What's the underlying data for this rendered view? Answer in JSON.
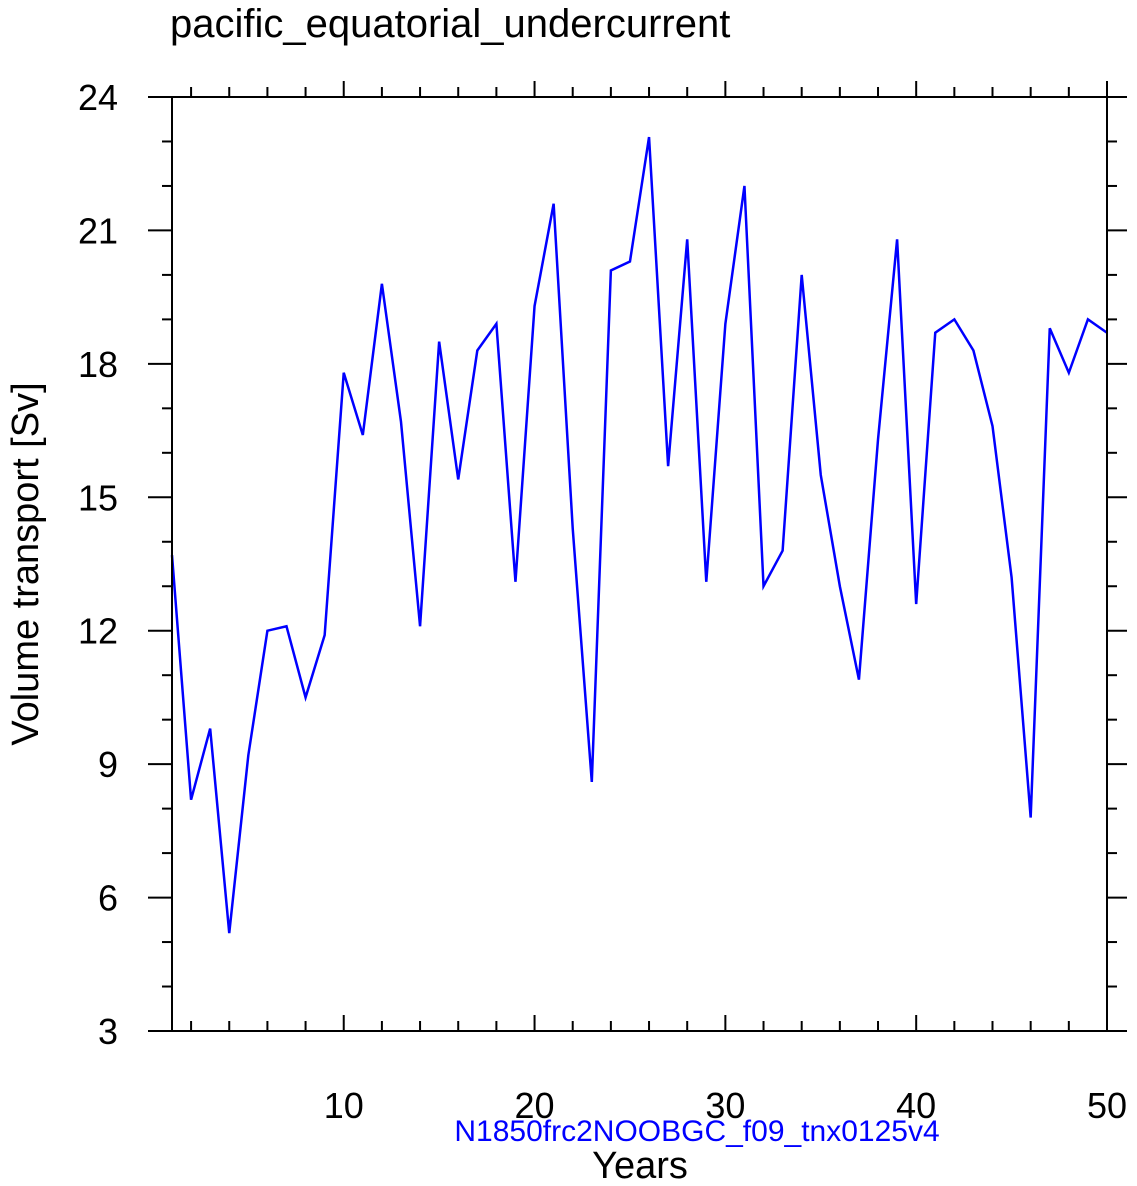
{
  "chart_data": {
    "type": "line",
    "title": "pacific_equatorial_undercurrent",
    "xlabel": "Years",
    "ylabel": "Volume transport [Sv]",
    "subtitle": "N1850frc2NOOBGC_f09_tnx0125v4",
    "xlim": [
      1,
      50
    ],
    "ylim": [
      3,
      24
    ],
    "x_ticks": [
      10,
      20,
      30,
      40,
      50
    ],
    "y_ticks": [
      3,
      6,
      9,
      12,
      15,
      18,
      21,
      24
    ],
    "x": [
      1,
      2,
      3,
      4,
      5,
      6,
      7,
      8,
      9,
      10,
      11,
      12,
      13,
      14,
      15,
      16,
      17,
      18,
      19,
      20,
      21,
      22,
      23,
      24,
      25,
      26,
      27,
      28,
      29,
      30,
      31,
      32,
      33,
      34,
      35,
      36,
      37,
      38,
      39,
      40,
      41,
      42,
      43,
      44,
      45,
      46,
      47,
      48,
      49,
      50
    ],
    "series": [
      {
        "values": [
          13.7,
          8.2,
          9.8,
          5.2,
          9.2,
          12.0,
          12.1,
          10.5,
          11.9,
          17.8,
          16.4,
          19.8,
          16.7,
          12.1,
          18.5,
          15.4,
          18.3,
          18.9,
          13.1,
          19.3,
          21.6,
          14.3,
          8.6,
          20.1,
          20.3,
          23.1,
          15.7,
          20.8,
          13.1,
          18.9,
          22.0,
          13.0,
          13.8,
          20.0,
          15.5,
          13.0,
          10.9,
          16.3,
          20.8,
          12.6,
          18.7,
          19.0,
          18.3,
          16.6,
          13.2,
          7.8,
          18.8,
          17.8,
          19.0,
          18.7
        ],
        "color": "#0000ff"
      }
    ],
    "grid": false,
    "colors": {
      "line": "#0000ff",
      "subtitle": "#0000ff",
      "axes": "#000000"
    }
  }
}
